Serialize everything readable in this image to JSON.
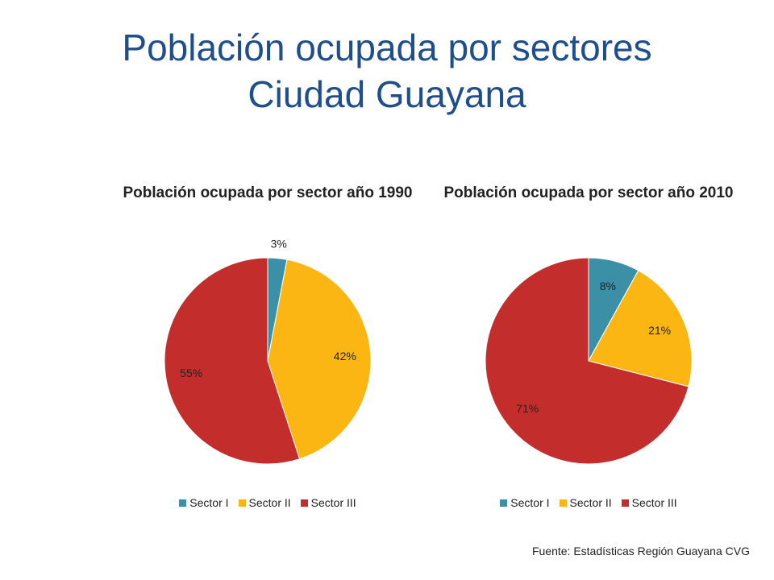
{
  "slide": {
    "title_line1": "Población ocupada por sectores",
    "title_line2": "Ciudad Guayana",
    "source": "Fuente:  Estadísticas Región Guayana CVG"
  },
  "chart_data": [
    {
      "type": "pie",
      "title": "Población ocupada por sector año 1990",
      "categories": [
        "Sector I",
        "Sector II",
        "Sector III"
      ],
      "values": [
        3,
        42,
        55
      ],
      "labels": [
        "3%",
        "42%",
        "55%"
      ],
      "colors": [
        "#3b8fa6",
        "#fbb614",
        "#c32e2c"
      ],
      "legend": "bottom"
    },
    {
      "type": "pie",
      "title": "Población ocupada por sector año 2010",
      "categories": [
        "Sector I",
        "Sector II",
        "Sector III"
      ],
      "values": [
        8,
        21,
        71
      ],
      "labels": [
        "8%",
        "21%",
        "71%"
      ],
      "colors": [
        "#3b8fa6",
        "#fbb614",
        "#c32e2c"
      ],
      "legend": "bottom"
    }
  ]
}
